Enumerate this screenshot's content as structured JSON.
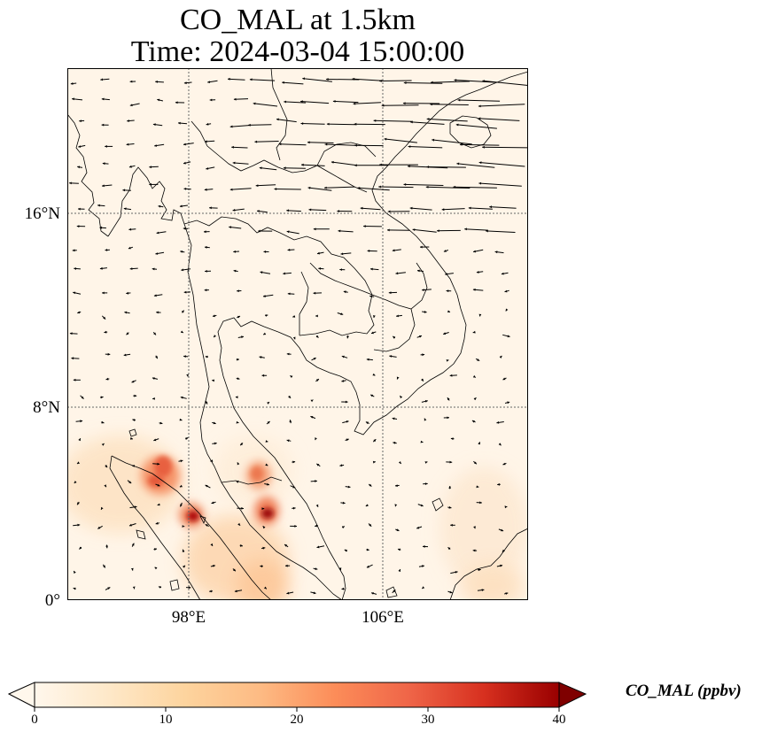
{
  "title_line1": "CO_MAL at 1.5km",
  "title_line2": "Time: 2024-03-04 15:00:00",
  "lat_labels": [
    "16°N",
    "8°N",
    "0°"
  ],
  "lon_labels": [
    "98°E",
    "106°E"
  ],
  "colorbar": {
    "label": "CO_MAL (ppbv)",
    "ticks": [
      "0",
      "10",
      "20",
      "30",
      "40"
    ],
    "colormap": "OrRd",
    "range": [
      0,
      40
    ],
    "extend": "both"
  },
  "colors": {
    "low": "#fff7ec",
    "mid": "#fc8d59",
    "high": "#7f0000"
  }
}
